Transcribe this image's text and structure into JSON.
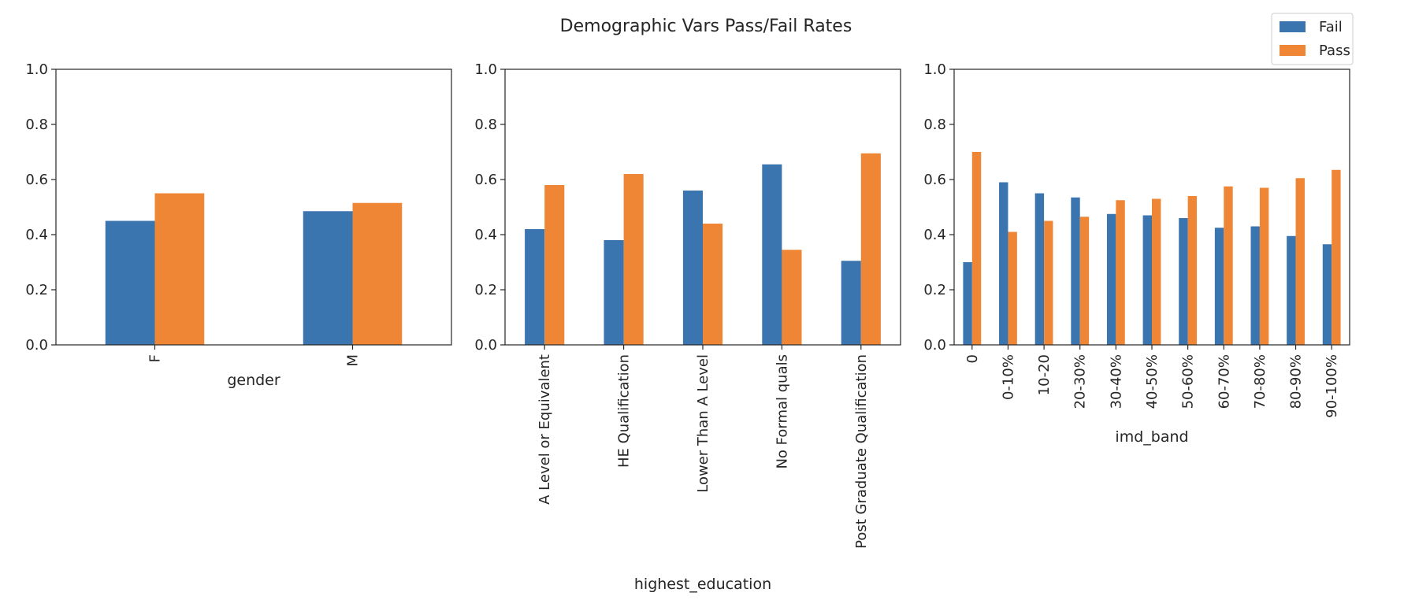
{
  "figure": {
    "title": "Demographic Vars Pass/Fail Rates"
  },
  "legend": {
    "placement": "top-right",
    "items": [
      {
        "label": "Fail",
        "color": "#3a75b0"
      },
      {
        "label": "Pass",
        "color": "#ef8636"
      }
    ]
  },
  "chart_data": [
    {
      "type": "bar",
      "categories": [
        "F",
        "M"
      ],
      "xlabel": "gender",
      "ylabel": "",
      "ylim": [
        0,
        1
      ],
      "yticks": [
        "0.0",
        "0.2",
        "0.4",
        "0.6",
        "0.8",
        "1.0"
      ],
      "grid": false,
      "series": [
        {
          "name": "Fail",
          "values": [
            0.45,
            0.485
          ]
        },
        {
          "name": "Pass",
          "values": [
            0.55,
            0.515
          ]
        }
      ]
    },
    {
      "type": "bar",
      "categories": [
        "A Level or Equivalent",
        "HE Qualification",
        "Lower Than A Level",
        "No Formal quals",
        "Post Graduate Qualification"
      ],
      "xlabel": "highest_education",
      "ylabel": "",
      "ylim": [
        0,
        1
      ],
      "yticks": [
        "0.0",
        "0.2",
        "0.4",
        "0.6",
        "0.8",
        "1.0"
      ],
      "grid": false,
      "series": [
        {
          "name": "Fail",
          "values": [
            0.42,
            0.38,
            0.56,
            0.655,
            0.305
          ]
        },
        {
          "name": "Pass",
          "values": [
            0.58,
            0.62,
            0.44,
            0.345,
            0.695
          ]
        }
      ]
    },
    {
      "type": "bar",
      "categories": [
        "0",
        "0-10%",
        "10-20",
        "20-30%",
        "30-40%",
        "40-50%",
        "50-60%",
        "60-70%",
        "70-80%",
        "80-90%",
        "90-100%"
      ],
      "xlabel": "imd_band",
      "ylabel": "",
      "ylim": [
        0,
        1
      ],
      "yticks": [
        "0.0",
        "0.2",
        "0.4",
        "0.6",
        "0.8",
        "1.0"
      ],
      "grid": false,
      "series": [
        {
          "name": "Fail",
          "values": [
            0.3,
            0.59,
            0.55,
            0.535,
            0.475,
            0.47,
            0.46,
            0.425,
            0.43,
            0.395,
            0.365
          ]
        },
        {
          "name": "Pass",
          "values": [
            0.7,
            0.41,
            0.45,
            0.465,
            0.525,
            0.53,
            0.54,
            0.575,
            0.57,
            0.605,
            0.635
          ]
        }
      ]
    }
  ]
}
